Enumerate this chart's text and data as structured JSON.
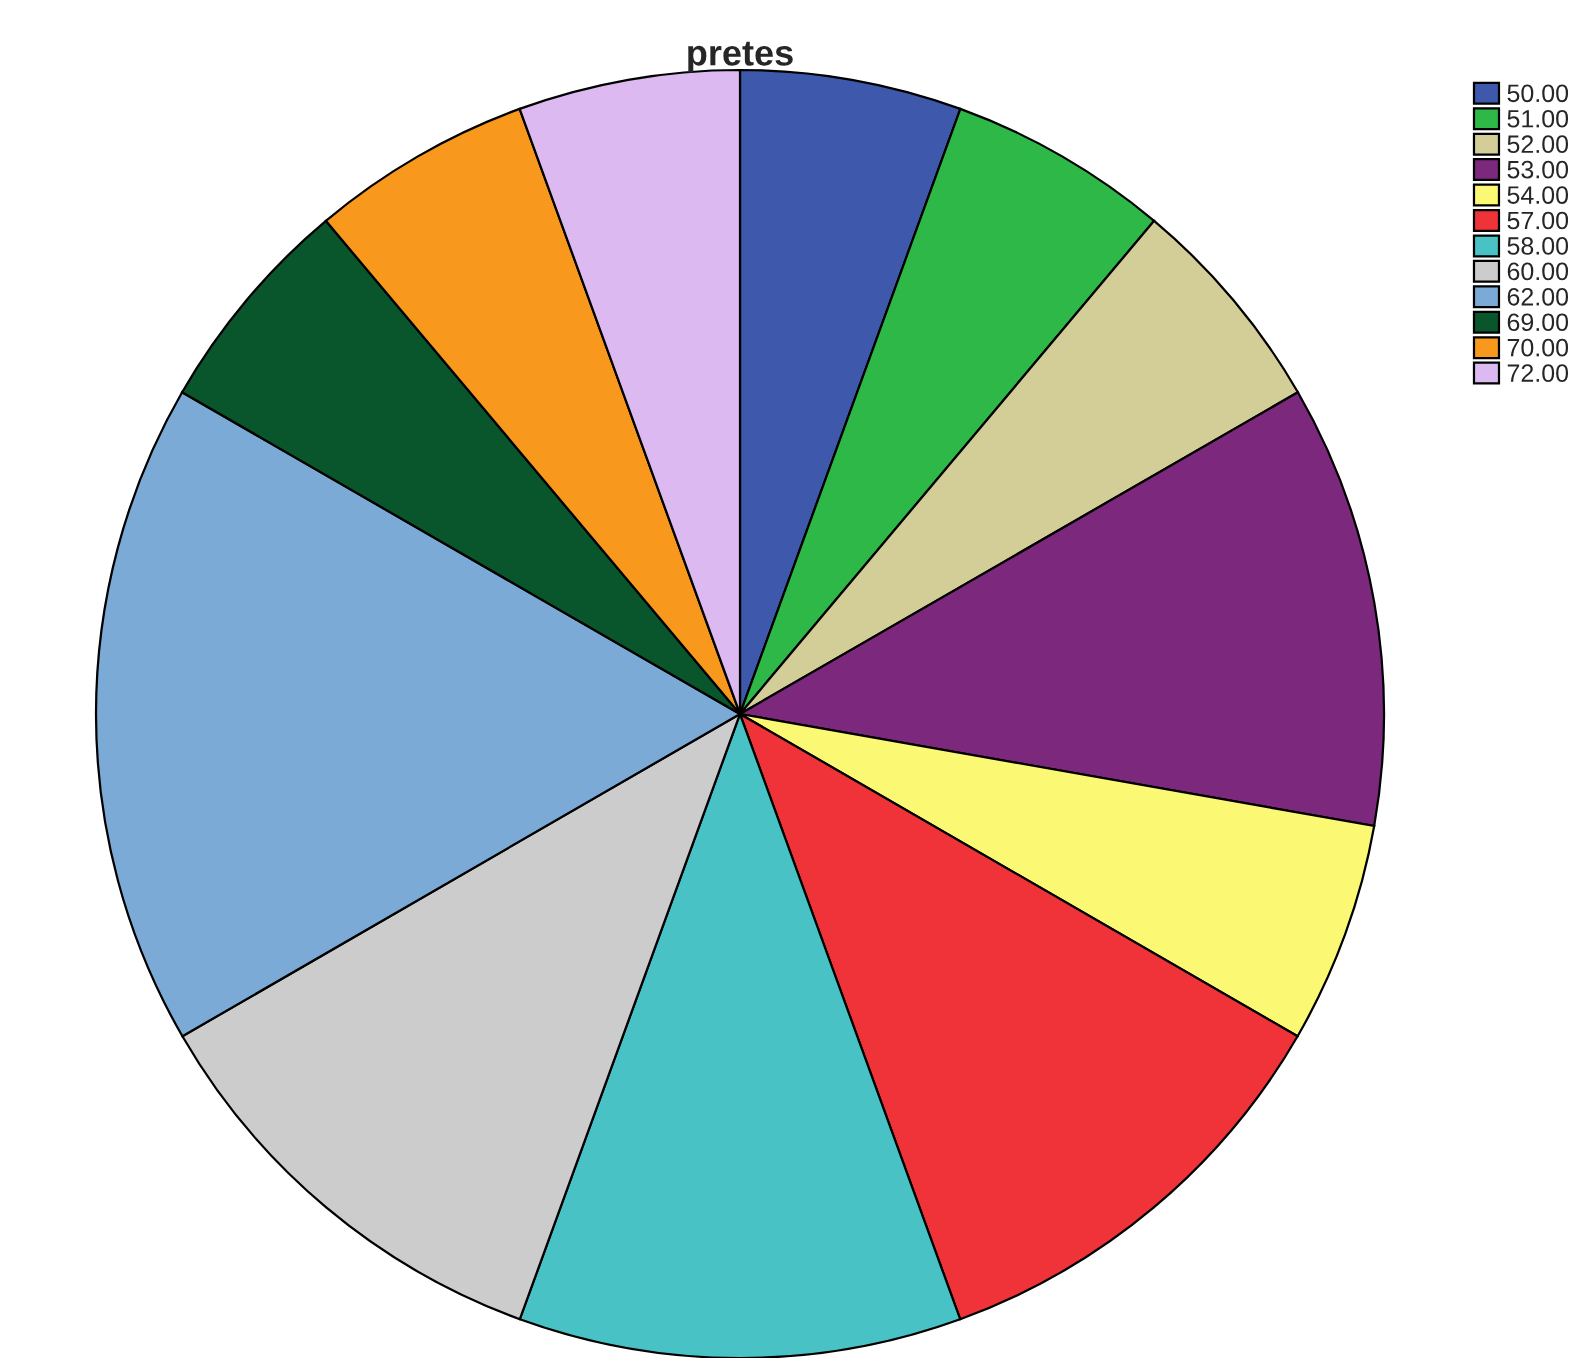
{
  "chart_data": {
    "type": "pie",
    "title": "pretes",
    "categories": [
      "50.00",
      "51.00",
      "52.00",
      "53.00",
      "54.00",
      "57.00",
      "58.00",
      "60.00",
      "62.00",
      "69.00",
      "70.00",
      "72.00"
    ],
    "values": [
      5.56,
      5.56,
      5.56,
      11.11,
      5.56,
      11.11,
      11.11,
      11.11,
      16.67,
      5.56,
      5.56,
      5.56
    ],
    "colors": [
      "#3e58ac",
      "#2eb848",
      "#d3ce97",
      "#7c287d",
      "#fbf873",
      "#ef3338",
      "#48c2c5",
      "#cccccc",
      "#7aaad5",
      "#0a562c",
      "#f8981d",
      "#ddb9f1"
    ],
    "legend": "top right"
  }
}
